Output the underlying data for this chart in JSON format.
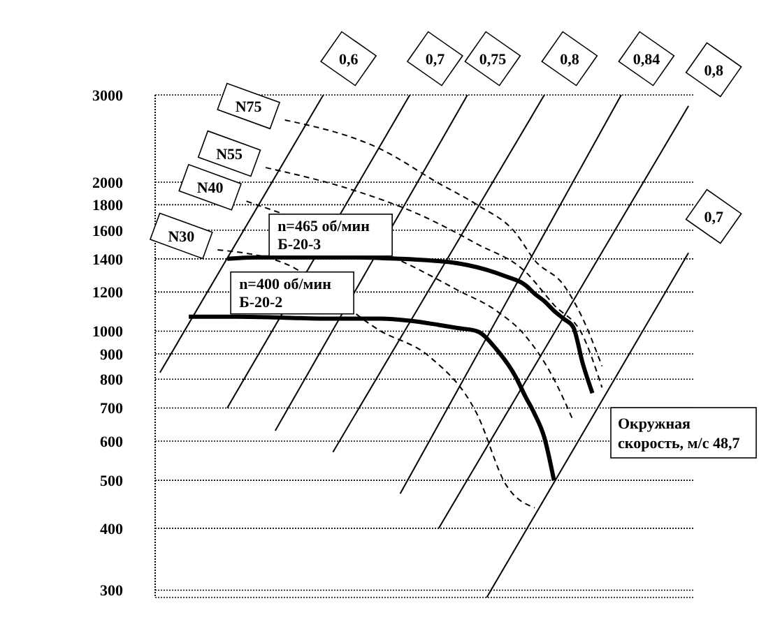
{
  "chart_data": {
    "type": "line",
    "categories": [
      null,
      null,
      null,
      null,
      null,
      null,
      null,
      null,
      null,
      null,
      null,
      null,
      null,
      null,
      null,
      null,
      null,
      null,
      null,
      null,
      null,
      null,
      null,
      null,
      null,
      null,
      null,
      null,
      null,
      null,
      null,
      null,
      null,
      null,
      null,
      null,
      null,
      null,
      null,
      null,
      null,
      null,
      null,
      null,
      null,
      null,
      null,
      null,
      null,
      null,
      null,
      null,
      null,
      null,
      null,
      null
    ],
    "ylim": [
      290,
      3000
    ],
    "yticks": [
      300,
      400,
      500,
      600,
      700,
      800,
      900,
      1000,
      1200,
      1400,
      1600,
      1800,
      2000,
      3000
    ],
    "log": true,
    "grid": "y",
    "tick_labels": "y",
    "series": [
      {
        "name": "n=465 об/мин\nБ-20-3",
        "color": "#000000",
        "values": [
          null,
          null,
          null,
          null,
          null,
          null,
          null,
          1400,
          null,
          null,
          1410,
          null,
          null,
          null,
          null,
          1410,
          null,
          null,
          null,
          null,
          1410,
          null,
          null,
          null,
          null,
          1400,
          null,
          null,
          1390,
          null,
          1380,
          null,
          1360,
          null,
          1330,
          null,
          1290,
          null,
          1240,
          1190,
          1150,
          1100,
          1060,
          1020,
          860,
          750,
          null,
          null,
          null,
          null,
          null,
          null,
          null,
          null,
          null,
          null
        ]
      },
      {
        "name": "n=400 об/мин\nБ-20-2",
        "color": "#000000",
        "values": [
          null,
          null,
          null,
          1070,
          null,
          null,
          null,
          null,
          1070,
          null,
          null,
          null,
          null,
          1065,
          null,
          null,
          null,
          null,
          1060,
          null,
          null,
          null,
          null,
          1060,
          null,
          null,
          1050,
          null,
          null,
          1030,
          null,
          1015,
          null,
          1000,
          null,
          920,
          null,
          810,
          740,
          680,
          610,
          500,
          null,
          null,
          null,
          null,
          null,
          null,
          null,
          null,
          null,
          null,
          null,
          null,
          null,
          null
        ]
      },
      {
        "name": "0,6",
        "color": "#000000",
        "line_style": "solid",
        "values": [
          825,
          null,
          null,
          null,
          null,
          null,
          null,
          null,
          null,
          null,
          null,
          null,
          null,
          null,
          null,
          null,
          null,
          3000,
          null,
          null,
          null,
          null,
          null,
          null,
          null,
          null,
          null,
          null,
          null,
          null,
          null,
          null,
          null,
          null,
          null,
          null,
          null,
          null,
          null,
          null,
          null,
          null,
          null,
          null,
          null,
          null,
          null,
          null,
          null,
          null,
          null,
          null,
          null,
          null,
          null,
          null
        ]
      },
      {
        "name": "0,7",
        "color": "#000000",
        "line_style": "solid",
        "values": [
          null,
          null,
          null,
          null,
          null,
          null,
          null,
          700,
          null,
          null,
          null,
          null,
          null,
          null,
          null,
          null,
          null,
          null,
          null,
          null,
          null,
          null,
          null,
          null,
          null,
          null,
          3000,
          null,
          null,
          null,
          null,
          null,
          null,
          null,
          null,
          null,
          null,
          null,
          null,
          null,
          null,
          null,
          null,
          null,
          null,
          null,
          null,
          null,
          null,
          null,
          null,
          null,
          null,
          null,
          null,
          null
        ]
      },
      {
        "name": "0,75",
        "color": "#000000",
        "line_style": "solid",
        "values": [
          null,
          null,
          null,
          null,
          null,
          null,
          null,
          null,
          null,
          null,
          null,
          null,
          630,
          null,
          null,
          null,
          null,
          null,
          null,
          null,
          null,
          null,
          null,
          null,
          null,
          null,
          null,
          null,
          null,
          null,
          null,
          null,
          3000,
          null,
          null,
          null,
          null,
          null,
          null,
          null,
          null,
          null,
          null,
          null,
          null,
          null,
          null,
          null,
          null,
          null,
          null,
          null,
          null,
          null,
          null,
          null
        ]
      },
      {
        "name": "0,8",
        "color": "#000000",
        "line_style": "solid",
        "values": [
          null,
          null,
          null,
          null,
          null,
          null,
          null,
          null,
          null,
          null,
          null,
          null,
          null,
          null,
          null,
          null,
          null,
          null,
          570,
          null,
          null,
          null,
          null,
          null,
          null,
          null,
          null,
          null,
          null,
          null,
          null,
          null,
          null,
          null,
          null,
          null,
          null,
          null,
          null,
          null,
          3000,
          null,
          null,
          null,
          null,
          null,
          null,
          null,
          null,
          null,
          null,
          null,
          null,
          null,
          null,
          null
        ]
      },
      {
        "name": "0,84",
        "color": "#000000",
        "line_style": "solid",
        "values": [
          null,
          null,
          null,
          null,
          null,
          null,
          null,
          null,
          null,
          null,
          null,
          null,
          null,
          null,
          null,
          null,
          null,
          null,
          null,
          null,
          null,
          null,
          null,
          null,
          null,
          470,
          null,
          null,
          null,
          null,
          null,
          null,
          null,
          null,
          null,
          null,
          null,
          null,
          null,
          null,
          null,
          null,
          null,
          null,
          null,
          null,
          null,
          null,
          3000,
          null,
          null,
          null,
          null,
          null,
          null,
          null
        ]
      },
      {
        "name": "0,8",
        "color": "#000000",
        "line_style": "solid",
        "values": [
          null,
          null,
          null,
          null,
          null,
          null,
          null,
          null,
          null,
          null,
          null,
          null,
          null,
          null,
          null,
          null,
          null,
          null,
          null,
          null,
          null,
          null,
          null,
          null,
          null,
          null,
          null,
          null,
          null,
          400,
          null,
          null,
          null,
          null,
          null,
          null,
          null,
          null,
          null,
          null,
          null,
          null,
          null,
          null,
          null,
          null,
          null,
          null,
          null,
          null,
          null,
          null,
          null,
          null,
          null,
          2850
        ]
      },
      {
        "name": "0,7",
        "color": "#000000",
        "line_style": "solid",
        "values": [
          null,
          null,
          null,
          null,
          null,
          null,
          null,
          null,
          null,
          null,
          null,
          null,
          null,
          null,
          null,
          null,
          null,
          null,
          null,
          null,
          null,
          null,
          null,
          null,
          null,
          null,
          null,
          null,
          null,
          null,
          null,
          null,
          null,
          null,
          290,
          null,
          null,
          null,
          null,
          null,
          null,
          null,
          null,
          null,
          null,
          null,
          null,
          null,
          null,
          null,
          null,
          null,
          null,
          null,
          null,
          1440
        ]
      },
      {
        "name": "N75",
        "color": "#000000",
        "line_style": "dashed",
        "values": [
          null,
          null,
          null,
          null,
          null,
          null,
          null,
          null,
          null,
          null,
          null,
          null,
          null,
          2670,
          null,
          null,
          null,
          null,
          null,
          null,
          null,
          null,
          null,
          2330,
          null,
          null,
          null,
          null,
          null,
          1990,
          null,
          null,
          null,
          1800,
          null,
          null,
          null,
          1580,
          null,
          1390,
          null,
          null,
          1240,
          null,
          1060,
          null,
          850,
          null,
          null,
          null,
          null,
          null,
          null,
          null,
          null,
          null
        ]
      },
      {
        "name": "N55",
        "color": "#000000",
        "line_style": "dashed",
        "values": [
          null,
          null,
          null,
          null,
          null,
          null,
          null,
          null,
          null,
          null,
          null,
          2140,
          null,
          null,
          null,
          null,
          null,
          null,
          null,
          null,
          1930,
          null,
          null,
          null,
          null,
          null,
          null,
          1720,
          null,
          null,
          null,
          null,
          null,
          1500,
          null,
          null,
          null,
          null,
          1320,
          null,
          null,
          1130,
          null,
          null,
          980,
          null,
          770,
          null,
          null,
          null,
          null,
          null,
          null,
          null,
          null,
          null
        ]
      },
      {
        "name": "N40",
        "color": "#000000",
        "line_style": "dashed",
        "values": [
          null,
          null,
          null,
          null,
          null,
          null,
          null,
          null,
          null,
          1830,
          null,
          null,
          null,
          null,
          null,
          null,
          null,
          null,
          null,
          null,
          null,
          null,
          null,
          null,
          null,
          null,
          null,
          1330,
          null,
          null,
          null,
          1210,
          null,
          null,
          null,
          1100,
          null,
          null,
          980,
          null,
          null,
          800,
          null,
          660,
          null,
          null,
          null,
          null,
          null,
          null,
          null,
          null,
          null,
          null,
          null,
          null
        ]
      },
      {
        "name": "N30",
        "color": "#000000",
        "line_style": "dashed",
        "values": [
          null,
          null,
          null,
          null,
          null,
          null,
          1460,
          null,
          null,
          null,
          null,
          null,
          null,
          1370,
          null,
          null,
          null,
          null,
          null,
          null,
          null,
          null,
          null,
          1000,
          null,
          null,
          null,
          null,
          890,
          null,
          null,
          null,
          null,
          680,
          null,
          null,
          490,
          null,
          null,
          440,
          null,
          null,
          null,
          null,
          null,
          null,
          null,
          null,
          null,
          null,
          null,
          null,
          null,
          null,
          null,
          null
        ]
      }
    ],
    "annotations": [
      "Окружная\nскорость, м/с 48,7"
    ]
  }
}
